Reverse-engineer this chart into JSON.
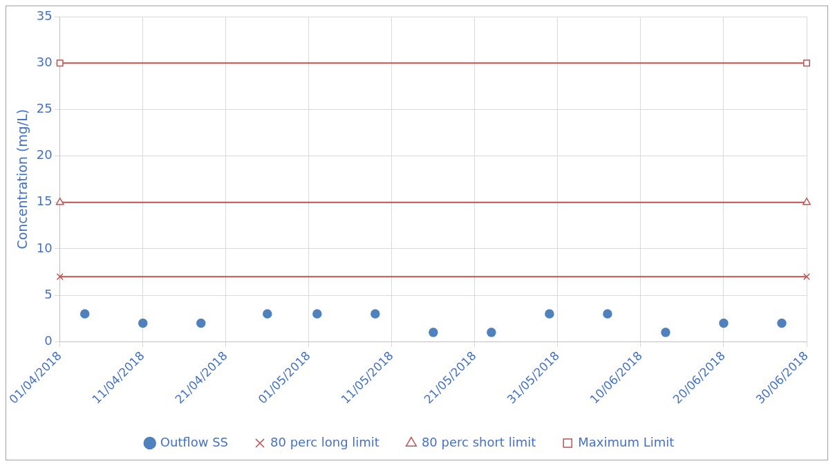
{
  "chart_data": {
    "type": "scatter",
    "ylabel": "Concentration (mg/L)",
    "xlim": [
      "2018-04-01",
      "2018-06-30"
    ],
    "xticks": [
      {
        "value": "2018-04-01",
        "label": "01/04/2018"
      },
      {
        "value": "2018-04-11",
        "label": "11/04/2018"
      },
      {
        "value": "2018-04-21",
        "label": "21/04/2018"
      },
      {
        "value": "2018-05-01",
        "label": "01/05/2018"
      },
      {
        "value": "2018-05-11",
        "label": "11/05/2018"
      },
      {
        "value": "2018-05-21",
        "label": "21/05/2018"
      },
      {
        "value": "2018-05-31",
        "label": "31/05/2018"
      },
      {
        "value": "2018-06-10",
        "label": "10/06/2018"
      },
      {
        "value": "2018-06-20",
        "label": "20/06/2018"
      },
      {
        "value": "2018-06-30",
        "label": "30/06/2018"
      }
    ],
    "ylim": [
      0,
      35
    ],
    "yticks": [
      0,
      5,
      10,
      15,
      20,
      25,
      30,
      35
    ],
    "grid": true,
    "legend": "bottom",
    "series": [
      {
        "name": "Outflow SS",
        "type": "scatter",
        "marker": "circle",
        "color": "#4f81bd",
        "x": [
          "2018-04-04",
          "2018-04-11",
          "2018-04-18",
          "2018-04-26",
          "2018-05-02",
          "2018-05-09",
          "2018-05-16",
          "2018-05-23",
          "2018-05-30",
          "2018-06-06",
          "2018-06-13",
          "2018-06-20",
          "2018-06-27"
        ],
        "values": [
          3,
          2,
          2,
          3,
          3,
          3,
          1,
          1,
          3,
          3,
          1,
          2,
          2
        ]
      },
      {
        "name": "80 perc long limit",
        "type": "line",
        "marker": "cross",
        "color": "#c0504d",
        "x": [
          "2018-04-01",
          "2018-06-30"
        ],
        "values": [
          7,
          7
        ]
      },
      {
        "name": "80 perc short limit",
        "type": "line",
        "marker": "triangle",
        "color": "#c0504d",
        "x": [
          "2018-04-01",
          "2018-06-30"
        ],
        "values": [
          15,
          15
        ]
      },
      {
        "name": "Maximum Limit",
        "type": "line",
        "marker": "square",
        "color": "#c0504d",
        "x": [
          "2018-04-01",
          "2018-06-30"
        ],
        "values": [
          30,
          30
        ]
      }
    ]
  }
}
